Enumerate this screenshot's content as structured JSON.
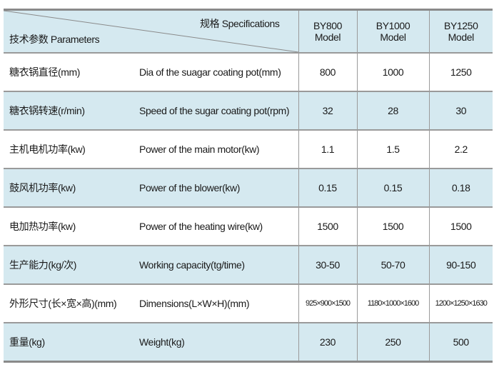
{
  "header": {
    "specifications": "规格 Specifications",
    "parameters": "技术参数 Parameters",
    "models": [
      {
        "name": "BY800",
        "sub": "Model"
      },
      {
        "name": "BY1000",
        "sub": "Model"
      },
      {
        "name": "BY1250",
        "sub": "Model"
      }
    ]
  },
  "rows": [
    {
      "cn": "糖衣锅直径(mm)",
      "en": "Dia of the suagar coating pot(mm)",
      "values": [
        "800",
        "1000",
        "1250"
      ]
    },
    {
      "cn": "糖衣锅转速(r/min)",
      "en": "Speed of the sugar coating pot(rpm)",
      "values": [
        "32",
        "28",
        "30"
      ]
    },
    {
      "cn": "主机电机功率(kw)",
      "en": "Power of the main motor(kw)",
      "values": [
        "1.1",
        "1.5",
        "2.2"
      ]
    },
    {
      "cn": "鼓风机功率(kw)",
      "en": "Power of the blower(kw)",
      "values": [
        "0.15",
        "0.15",
        "0.18"
      ]
    },
    {
      "cn": "电加热功率(kw)",
      "en": "Power of the heating wire(kw)",
      "values": [
        "1500",
        "1500",
        "1500"
      ]
    },
    {
      "cn": "生产能力(kg/次)",
      "en": "Working capacity(tg/time)",
      "values": [
        "30-50",
        "50-70",
        "90-150"
      ]
    },
    {
      "cn": "外形尺寸(长×宽×高)(mm)",
      "en": "Dimensions(L×W×H)(mm)",
      "values": [
        "925×900×1500",
        "1180×1000×1600",
        "1200×1250×1630"
      ]
    },
    {
      "cn": "重量(kg)",
      "en": "Weight(kg)",
      "values": [
        "230",
        "250",
        "500"
      ]
    }
  ],
  "colors": {
    "row_blue": "#d5e9f0",
    "border": "#9a9a9a"
  }
}
